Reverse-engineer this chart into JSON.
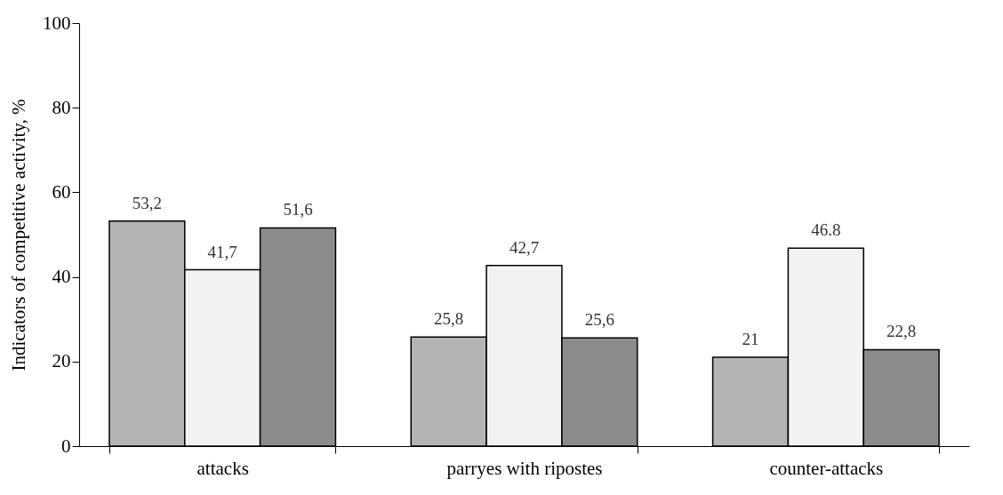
{
  "chart_data": {
    "type": "bar",
    "ylabel": "Indicators of competitive activity, %",
    "categories": [
      "attacks",
      "parryes with ripostes",
      "counter-attacks"
    ],
    "series": [
      {
        "color": "#b4b4b4",
        "values": [
          53.2,
          25.8,
          21
        ],
        "value_labels": [
          "53,2",
          "25,8",
          "21"
        ]
      },
      {
        "color": "#f2f2f2",
        "values": [
          41.7,
          42.7,
          46.8
        ],
        "value_labels": [
          "41,7",
          "42,7",
          "46.8"
        ]
      },
      {
        "color": "#8c8c8c",
        "values": [
          51.6,
          25.6,
          22.8
        ],
        "value_labels": [
          "51,6",
          "25,6",
          "22,8"
        ]
      }
    ],
    "ylim": [
      0,
      100
    ],
    "yticks": [
      0,
      20,
      40,
      60,
      80,
      100
    ]
  }
}
